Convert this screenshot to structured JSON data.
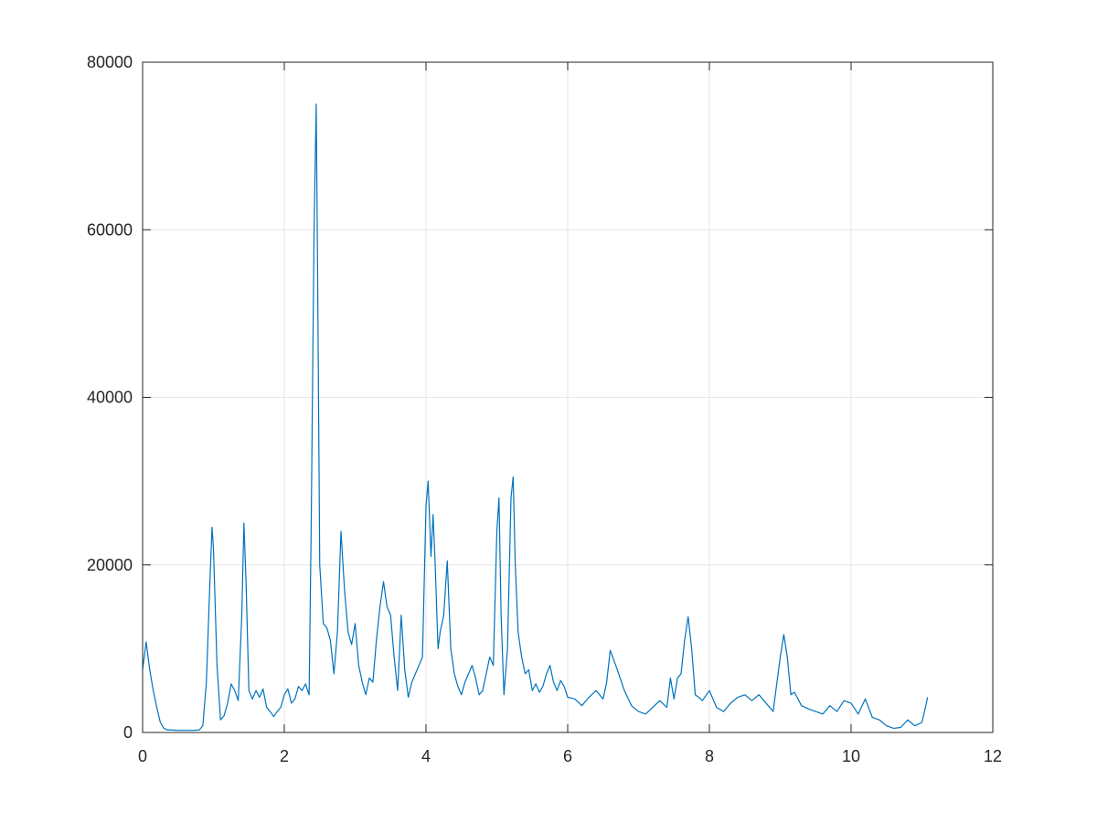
{
  "chart_data": {
    "type": "line",
    "title": "",
    "xlabel": "",
    "ylabel": "",
    "xlim": [
      0,
      12
    ],
    "ylim": [
      0,
      80000
    ],
    "x_ticks": [
      0,
      2,
      4,
      6,
      8,
      10,
      12
    ],
    "y_ticks": [
      0,
      20000,
      40000,
      60000,
      80000
    ],
    "x_tick_labels": [
      "0",
      "2",
      "4",
      "6",
      "8",
      "10",
      "12"
    ],
    "y_tick_labels": [
      "0",
      "20000",
      "40000",
      "60000",
      "80000"
    ],
    "grid": true,
    "colors": {
      "line": "#0072BD",
      "grid": "#e6e6e6",
      "axes": "#262626"
    },
    "series": [
      {
        "x": [
          0,
          0.05,
          0.1,
          0.15,
          0.2,
          0.25,
          0.3,
          0.35,
          0.4,
          0.5,
          0.6,
          0.7,
          0.8,
          0.85,
          0.9,
          0.95,
          0.98,
          1.0,
          1.05,
          1.1,
          1.15,
          1.2,
          1.25,
          1.3,
          1.35,
          1.4,
          1.43,
          1.46,
          1.5,
          1.55,
          1.6,
          1.65,
          1.7,
          1.75,
          1.8,
          1.85,
          1.9,
          1.95,
          2.0,
          2.05,
          2.1,
          2.15,
          2.2,
          2.25,
          2.3,
          2.35,
          2.38,
          2.42,
          2.45,
          2.47,
          2.5,
          2.55,
          2.6,
          2.65,
          2.7,
          2.75,
          2.8,
          2.85,
          2.9,
          2.95,
          3.0,
          3.05,
          3.1,
          3.15,
          3.2,
          3.25,
          3.3,
          3.35,
          3.4,
          3.45,
          3.5,
          3.55,
          3.6,
          3.65,
          3.7,
          3.75,
          3.8,
          3.85,
          3.9,
          3.95,
          4.0,
          4.03,
          4.07,
          4.1,
          4.13,
          4.17,
          4.2,
          4.25,
          4.3,
          4.35,
          4.4,
          4.45,
          4.5,
          4.55,
          4.6,
          4.65,
          4.7,
          4.75,
          4.8,
          4.85,
          4.9,
          4.95,
          5.0,
          5.03,
          5.06,
          5.1,
          5.15,
          5.2,
          5.23,
          5.26,
          5.3,
          5.35,
          5.4,
          5.45,
          5.5,
          5.55,
          5.6,
          5.65,
          5.7,
          5.75,
          5.8,
          5.85,
          5.9,
          5.95,
          6.0,
          6.1,
          6.2,
          6.3,
          6.4,
          6.5,
          6.55,
          6.6,
          6.7,
          6.8,
          6.9,
          7.0,
          7.1,
          7.2,
          7.3,
          7.4,
          7.45,
          7.5,
          7.55,
          7.6,
          7.65,
          7.7,
          7.75,
          7.8,
          7.85,
          7.9,
          8.0,
          8.1,
          8.2,
          8.3,
          8.4,
          8.5,
          8.6,
          8.7,
          8.8,
          8.9,
          9.0,
          9.05,
          9.1,
          9.15,
          9.2,
          9.3,
          9.4,
          9.5,
          9.6,
          9.7,
          9.8,
          9.9,
          10.0,
          10.1,
          10.2,
          10.3,
          10.4,
          10.5,
          10.6,
          10.7,
          10.8,
          10.9,
          11.0,
          11.05,
          11.08
        ],
        "y": [
          7500,
          10800,
          7500,
          5000,
          3000,
          1200,
          500,
          300,
          300,
          250,
          250,
          250,
          300,
          800,
          6000,
          18000,
          24500,
          22000,
          8000,
          1500,
          2000,
          3500,
          5800,
          5000,
          3800,
          14000,
          25000,
          18000,
          5000,
          4000,
          5000,
          4200,
          5200,
          3000,
          2500,
          1900,
          2500,
          3000,
          4500,
          5200,
          3500,
          4000,
          5500,
          5000,
          5800,
          4500,
          25000,
          60000,
          75000,
          55000,
          20000,
          13000,
          12500,
          11000,
          7000,
          12000,
          24000,
          17000,
          12000,
          10500,
          13000,
          8000,
          6000,
          4500,
          6500,
          6000,
          11000,
          15000,
          18000,
          15000,
          14000,
          9000,
          5000,
          14000,
          7500,
          4200,
          6000,
          7000,
          8000,
          9000,
          27000,
          30000,
          21000,
          26000,
          20000,
          10000,
          12000,
          14000,
          20500,
          10000,
          7000,
          5500,
          4500,
          6000,
          7000,
          8000,
          6500,
          4500,
          5000,
          7000,
          9000,
          8000,
          24000,
          28000,
          14000,
          4500,
          10000,
          28000,
          30500,
          20000,
          12000,
          9000,
          7000,
          7500,
          5000,
          5800,
          4800,
          5500,
          7000,
          8000,
          6000,
          5000,
          6200,
          5500,
          4200,
          4000,
          3200,
          4200,
          5000,
          4000,
          6000,
          9800,
          7500,
          5000,
          3200,
          2500,
          2200,
          3000,
          3800,
          3000,
          6500,
          4000,
          6500,
          7000,
          11000,
          13800,
          10000,
          4500,
          4200,
          3800,
          5000,
          3000,
          2500,
          3500,
          4200,
          4500,
          3800,
          4500,
          3500,
          2500,
          9000,
          11700,
          9000,
          4500,
          4800,
          3200,
          2800,
          2500,
          2200,
          3200,
          2500,
          3800,
          3500,
          2200,
          4000,
          1800,
          1500,
          800,
          500,
          600,
          1500,
          800,
          1200,
          3000,
          4200
        ]
      }
    ]
  }
}
